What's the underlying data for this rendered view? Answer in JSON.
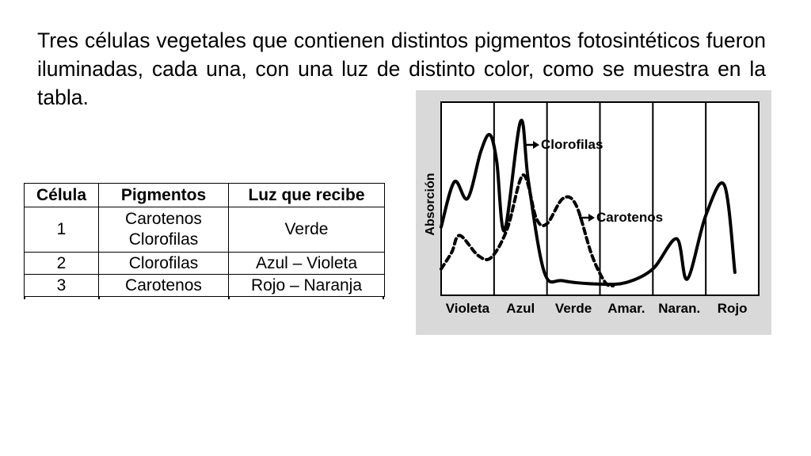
{
  "intro_text": "Tres células vegetales que contienen distintos pigmentos fotosintéticos fueron iluminadas, cada una, con una luz de distinto color, como se muestra en la tabla.",
  "table": {
    "headers": [
      "Célula",
      "Pigmentos",
      "Luz que recibe"
    ],
    "rows": [
      {
        "cell": "1",
        "pigments": [
          "Carotenos",
          "Clorofilas"
        ],
        "light": "Verde"
      },
      {
        "cell": "2",
        "pigments": [
          "Clorofilas"
        ],
        "light": "Azul – Violeta"
      },
      {
        "cell": "3",
        "pigments": [
          "Carotenos"
        ],
        "light": "Rojo – Naranja"
      }
    ]
  },
  "chart_data": {
    "type": "line",
    "ylabel": "Absorción",
    "categories": [
      "Violeta",
      "Azul",
      "Verde",
      "Amar.",
      "Naran.",
      "Rojo"
    ],
    "grid": true,
    "series": [
      {
        "name": "Clorofilas",
        "style": "solid",
        "points": [
          [
            0.0,
            0.35
          ],
          [
            0.25,
            0.62
          ],
          [
            0.5,
            0.52
          ],
          [
            0.75,
            0.8
          ],
          [
            0.92,
            0.9
          ],
          [
            1.05,
            0.74
          ],
          [
            1.2,
            0.33
          ],
          [
            1.5,
            0.98
          ],
          [
            1.65,
            0.62
          ],
          [
            1.95,
            0.08
          ],
          [
            2.3,
            0.03
          ],
          [
            3.0,
            0.01
          ],
          [
            3.5,
            0.02
          ],
          [
            4.0,
            0.1
          ],
          [
            4.45,
            0.28
          ],
          [
            4.65,
            0.04
          ],
          [
            5.0,
            0.42
          ],
          [
            5.35,
            0.6
          ],
          [
            5.55,
            0.08
          ]
        ]
      },
      {
        "name": "Carotenos",
        "style": "dashed",
        "points": [
          [
            0.0,
            0.1
          ],
          [
            0.2,
            0.2
          ],
          [
            0.35,
            0.3
          ],
          [
            0.7,
            0.18
          ],
          [
            0.95,
            0.17
          ],
          [
            1.25,
            0.34
          ],
          [
            1.55,
            0.66
          ],
          [
            1.8,
            0.4
          ],
          [
            2.0,
            0.37
          ],
          [
            2.3,
            0.52
          ],
          [
            2.55,
            0.48
          ],
          [
            2.85,
            0.18
          ],
          [
            3.1,
            0.02
          ],
          [
            3.25,
            0.0
          ]
        ]
      }
    ]
  }
}
